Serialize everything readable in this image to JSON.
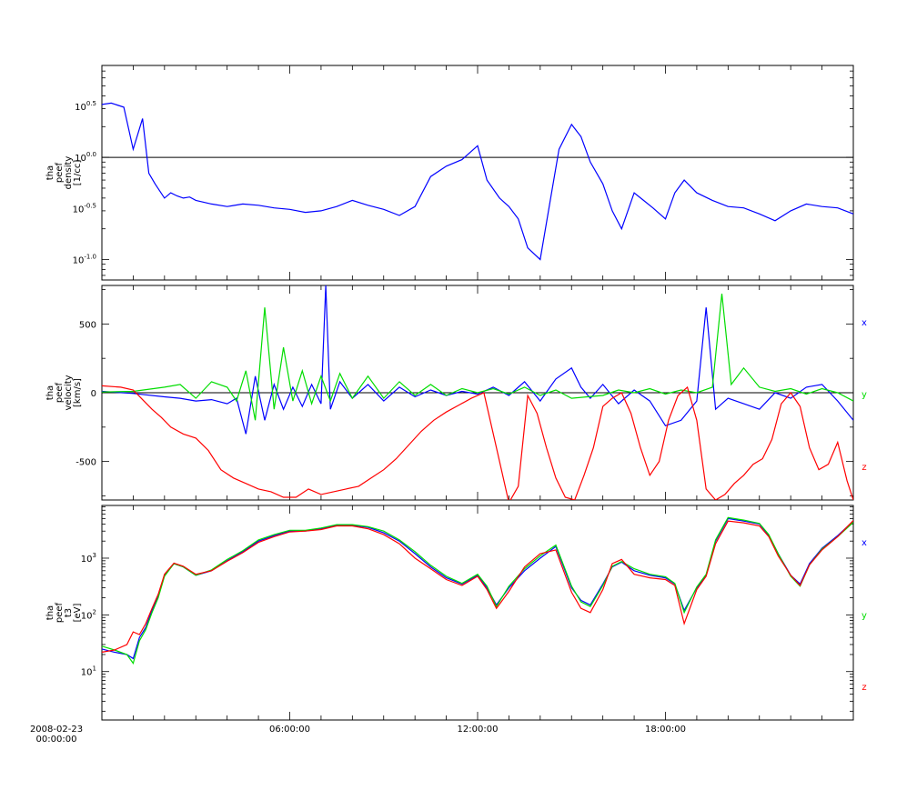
{
  "chart_data": [
    {
      "type": "line",
      "ylabel": [
        "tha",
        "peef",
        "density",
        "[1/cc]"
      ],
      "yscale": "log",
      "ylim": [
        0.0631,
        7.94
      ],
      "yticks": [
        {
          "value": 3.162,
          "label": "10^0.5"
        },
        {
          "value": 1.0,
          "label": "10^0.0"
        },
        {
          "value": 0.3162,
          "label": "10^-0.5"
        },
        {
          "value": 0.1,
          "label": "10^-1.0"
        }
      ],
      "reference_line": 1.0,
      "series": [
        {
          "color": "#0000ff",
          "x": [
            0,
            0.3,
            0.7,
            1.0,
            1.3,
            1.5,
            1.7,
            2.0,
            2.2,
            2.4,
            2.6,
            2.8,
            3.0,
            3.5,
            4.0,
            4.5,
            5.0,
            5.5,
            6.0,
            6.5,
            7.0,
            7.5,
            8.0,
            8.5,
            9.0,
            9.5,
            10.0,
            10.5,
            11.0,
            11.5,
            12.0,
            12.3,
            12.7,
            13.0,
            13.3,
            13.6,
            14.0,
            14.3,
            14.6,
            15.0,
            15.3,
            15.6,
            16.0,
            16.3,
            16.6,
            17.0,
            17.3,
            17.6,
            18.0,
            18.3,
            18.6,
            19.0,
            19.5,
            20.0,
            20.5,
            21.0,
            21.5,
            22.0,
            22.5,
            23.0,
            23.5,
            24.0
          ],
          "y": [
            3.3,
            3.4,
            3.1,
            1.2,
            2.4,
            0.7,
            0.55,
            0.4,
            0.45,
            0.42,
            0.4,
            0.41,
            0.38,
            0.35,
            0.33,
            0.35,
            0.34,
            0.32,
            0.31,
            0.29,
            0.3,
            0.33,
            0.38,
            0.34,
            0.31,
            0.27,
            0.33,
            0.65,
            0.82,
            0.95,
            1.3,
            0.6,
            0.4,
            0.33,
            0.25,
            0.13,
            0.1,
            0.35,
            1.2,
            2.1,
            1.6,
            0.9,
            0.55,
            0.3,
            0.2,
            0.45,
            0.38,
            0.32,
            0.25,
            0.45,
            0.6,
            0.45,
            0.38,
            0.33,
            0.32,
            0.28,
            0.24,
            0.3,
            0.35,
            0.33,
            0.32,
            0.28
          ]
        }
      ]
    },
    {
      "type": "line",
      "ylabel": [
        "tha",
        "peef",
        "velocity",
        "[km/s]"
      ],
      "ylim": [
        -780,
        780
      ],
      "yticks": [
        500,
        0,
        -500
      ],
      "reference_line": 0,
      "legend": [
        "x",
        "y",
        "z"
      ],
      "series": [
        {
          "name": "x",
          "color": "#0000ff",
          "x": [
            0,
            1.0,
            2.0,
            2.5,
            3.0,
            3.5,
            4.0,
            4.3,
            4.6,
            4.9,
            5.2,
            5.5,
            5.8,
            6.1,
            6.4,
            6.7,
            7.0,
            7.15,
            7.3,
            7.6,
            8.0,
            8.5,
            9.0,
            9.5,
            10.0,
            10.5,
            11.0,
            11.5,
            12.0,
            12.5,
            13.0,
            13.5,
            14.0,
            14.5,
            15.0,
            15.3,
            15.6,
            16.0,
            16.5,
            17.0,
            17.5,
            18.0,
            18.5,
            19.0,
            19.3,
            19.6,
            20.0,
            20.5,
            21.0,
            21.5,
            22.0,
            22.5,
            23.0,
            23.5,
            24.0
          ],
          "y": [
            10,
            -5,
            -30,
            -40,
            -60,
            -50,
            -80,
            -40,
            -300,
            120,
            -200,
            60,
            -120,
            40,
            -100,
            60,
            -80,
            780,
            -120,
            80,
            -40,
            60,
            -60,
            40,
            -30,
            20,
            -20,
            10,
            -10,
            40,
            -20,
            80,
            -60,
            100,
            180,
            40,
            -40,
            60,
            -80,
            20,
            -60,
            -240,
            -200,
            -60,
            620,
            -120,
            -40,
            -80,
            -120,
            0,
            -40,
            40,
            60,
            -60,
            -200
          ]
        },
        {
          "name": "y",
          "color": "#00dd00",
          "x": [
            0,
            1.0,
            2.0,
            2.5,
            3.0,
            3.5,
            4.0,
            4.3,
            4.6,
            4.9,
            5.2,
            5.5,
            5.8,
            6.1,
            6.4,
            6.7,
            7.0,
            7.3,
            7.6,
            8.0,
            8.5,
            9.0,
            9.5,
            10.0,
            10.5,
            11.0,
            11.5,
            12.0,
            12.5,
            13.0,
            13.5,
            14.0,
            14.5,
            15.0,
            15.5,
            16.0,
            16.5,
            17.0,
            17.5,
            18.0,
            18.5,
            19.0,
            19.5,
            19.8,
            20.1,
            20.5,
            21.0,
            21.5,
            22.0,
            22.5,
            23.0,
            23.5,
            24.0
          ],
          "y": [
            5,
            10,
            40,
            60,
            -40,
            80,
            40,
            -60,
            160,
            -200,
            620,
            -120,
            330,
            -60,
            160,
            -80,
            120,
            -60,
            140,
            -40,
            120,
            -40,
            80,
            -20,
            60,
            -20,
            30,
            0,
            30,
            -10,
            40,
            -20,
            20,
            -40,
            -30,
            -20,
            20,
            0,
            30,
            -10,
            20,
            0,
            40,
            720,
            60,
            180,
            40,
            10,
            30,
            -10,
            30,
            0,
            -60
          ]
        },
        {
          "name": "z",
          "color": "#ff0000",
          "x": [
            0,
            0.6,
            1.0,
            1.3,
            1.6,
            1.9,
            2.2,
            2.6,
            3.0,
            3.4,
            3.8,
            4.2,
            4.6,
            5.0,
            5.4,
            5.8,
            6.2,
            6.6,
            7.0,
            7.4,
            7.8,
            8.2,
            8.6,
            9.0,
            9.4,
            9.8,
            10.2,
            10.6,
            11.0,
            11.4,
            11.8,
            12.2,
            12.6,
            13.0,
            13.3,
            13.6,
            13.9,
            14.2,
            14.5,
            14.8,
            15.1,
            15.4,
            15.7,
            16.0,
            16.3,
            16.6,
            16.9,
            17.2,
            17.5,
            17.8,
            18.1,
            18.4,
            18.7,
            19.0,
            19.3,
            19.6,
            19.9,
            20.2,
            20.5,
            20.8,
            21.1,
            21.4,
            21.7,
            22.0,
            22.3,
            22.6,
            22.9,
            23.2,
            23.5,
            23.8,
            24.0
          ],
          "y": [
            50,
            40,
            20,
            -50,
            -120,
            -180,
            -250,
            -300,
            -330,
            -420,
            -560,
            -620,
            -660,
            -700,
            -720,
            -760,
            -760,
            -700,
            -740,
            -720,
            -700,
            -680,
            -620,
            -560,
            -480,
            -380,
            -280,
            -200,
            -140,
            -90,
            -40,
            0,
            -400,
            -800,
            -680,
            -20,
            -150,
            -400,
            -620,
            -760,
            -780,
            -600,
            -400,
            -100,
            -40,
            0,
            -150,
            -400,
            -600,
            -500,
            -200,
            -20,
            40,
            -200,
            -700,
            -780,
            -740,
            -660,
            -600,
            -520,
            -480,
            -340,
            -80,
            0,
            -100,
            -400,
            -560,
            -520,
            -360,
            -640,
            -780
          ]
        }
      ]
    },
    {
      "type": "line",
      "ylabel": [
        "tha",
        "peef",
        "t3",
        "[eV]"
      ],
      "yscale": "log",
      "ylim": [
        1.4,
        8500
      ],
      "yticks": [
        {
          "value": 10,
          "label": "10^1"
        },
        {
          "value": 100,
          "label": "10^2"
        },
        {
          "value": 1000,
          "label": "10^3"
        }
      ],
      "legend": [
        "x",
        "y",
        "z"
      ],
      "series": [
        {
          "name": "x",
          "color": "#0000ff",
          "x": [
            0,
            0.4,
            0.8,
            1.0,
            1.2,
            1.4,
            1.6,
            1.8,
            2.0,
            2.3,
            2.6,
            3.0,
            3.5,
            4.0,
            4.5,
            5.0,
            5.5,
            6.0,
            6.5,
            7.0,
            7.5,
            8.0,
            8.5,
            9.0,
            9.5,
            10.0,
            10.5,
            11.0,
            11.5,
            12.0,
            12.3,
            12.6,
            13.0,
            13.5,
            14.0,
            14.5,
            15.0,
            15.3,
            15.6,
            16.0,
            16.3,
            16.6,
            17.0,
            17.5,
            18.0,
            18.3,
            18.6,
            19.0,
            19.3,
            19.6,
            20.0,
            20.5,
            21.0,
            21.3,
            21.6,
            22.0,
            22.3,
            22.6,
            23.0,
            23.5,
            24.0
          ],
          "y": [
            25,
            22,
            20,
            17,
            40,
            60,
            120,
            220,
            500,
            800,
            700,
            500,
            600,
            900,
            1300,
            2000,
            2500,
            3000,
            3000,
            3300,
            3800,
            3800,
            3500,
            2800,
            2000,
            1200,
            700,
            450,
            350,
            500,
            300,
            150,
            300,
            600,
            1000,
            1600,
            300,
            180,
            150,
            350,
            700,
            850,
            600,
            500,
            450,
            350,
            120,
            300,
            500,
            2000,
            5000,
            4500,
            4000,
            2500,
            1200,
            500,
            350,
            800,
            1500,
            2500,
            4500
          ]
        },
        {
          "name": "y",
          "color": "#00dd00",
          "x": [
            0,
            0.4,
            0.8,
            1.0,
            1.2,
            1.4,
            1.6,
            1.8,
            2.0,
            2.3,
            2.6,
            3.0,
            3.5,
            4.0,
            4.5,
            5.0,
            5.5,
            6.0,
            6.5,
            7.0,
            7.5,
            8.0,
            8.5,
            9.0,
            9.5,
            10.0,
            10.5,
            11.0,
            11.5,
            12.0,
            12.3,
            12.6,
            13.0,
            13.5,
            14.0,
            14.5,
            15.0,
            15.3,
            15.6,
            16.0,
            16.3,
            16.6,
            17.0,
            17.5,
            18.0,
            18.3,
            18.6,
            19.0,
            19.3,
            19.6,
            20.0,
            20.5,
            21.0,
            21.3,
            21.6,
            22.0,
            22.3,
            22.6,
            23.0,
            23.5,
            24.0
          ],
          "y": [
            28,
            24,
            20,
            14,
            35,
            55,
            110,
            200,
            480,
            800,
            700,
            500,
            620,
            950,
            1350,
            2100,
            2600,
            3100,
            3100,
            3400,
            3900,
            3900,
            3600,
            3000,
            2100,
            1300,
            750,
            480,
            360,
            520,
            320,
            140,
            320,
            650,
            1100,
            1700,
            320,
            170,
            140,
            330,
            720,
            870,
            650,
            520,
            470,
            360,
            110,
            310,
            520,
            2100,
            5200,
            4700,
            4100,
            2600,
            1200,
            480,
            320,
            760,
            1450,
            2400,
            4300
          ]
        },
        {
          "name": "z",
          "color": "#ff0000",
          "x": [
            0,
            0.4,
            0.8,
            1.0,
            1.2,
            1.4,
            1.6,
            1.8,
            2.0,
            2.3,
            2.6,
            3.0,
            3.5,
            4.0,
            4.5,
            5.0,
            5.5,
            6.0,
            6.5,
            7.0,
            7.5,
            8.0,
            8.5,
            9.0,
            9.5,
            10.0,
            10.5,
            11.0,
            11.5,
            12.0,
            12.3,
            12.6,
            13.0,
            13.5,
            14.0,
            14.5,
            15.0,
            15.3,
            15.6,
            16.0,
            16.3,
            16.6,
            17.0,
            17.5,
            18.0,
            18.3,
            18.6,
            19.0,
            19.3,
            19.6,
            20.0,
            20.5,
            21.0,
            21.3,
            21.6,
            22.0,
            22.3,
            22.6,
            23.0,
            23.5,
            24.0
          ],
          "y": [
            22,
            24,
            30,
            50,
            45,
            70,
            130,
            230,
            520,
            820,
            720,
            520,
            600,
            880,
            1250,
            1900,
            2400,
            2900,
            3000,
            3200,
            3700,
            3700,
            3300,
            2600,
            1800,
            1000,
            650,
            420,
            330,
            480,
            280,
            130,
            260,
            700,
            1200,
            1400,
            250,
            130,
            110,
            280,
            800,
            950,
            520,
            450,
            420,
            330,
            70,
            280,
            480,
            1800,
            4500,
            4200,
            3700,
            2400,
            1100,
            500,
            330,
            760,
            1400,
            2400,
            4600
          ]
        }
      ]
    }
  ],
  "x_axis": {
    "range_hours": [
      0,
      24
    ],
    "ticks": [
      {
        "hour": 0,
        "label": "2008-02-23"
      },
      {
        "hour": 6,
        "label": "06:00:00"
      },
      {
        "hour": 12,
        "label": "12:00:00"
      },
      {
        "hour": 18,
        "label": "18:00:00"
      }
    ]
  },
  "time_origin_label": [
    "2008-02-23",
    "00:00:00"
  ]
}
